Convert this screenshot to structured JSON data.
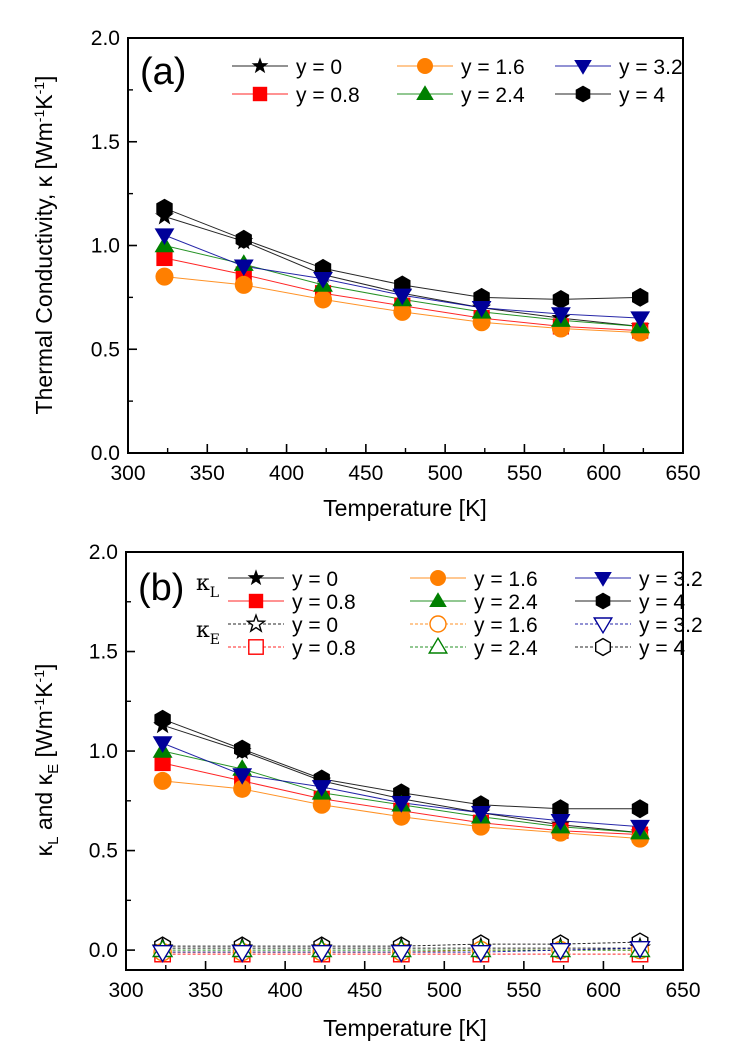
{
  "chart_data": [
    {
      "type": "line",
      "panel_label": "(a)",
      "title": "",
      "xlabel": "Temperature [K]",
      "ylabel": "Thermal Conductivity, κ [Wm⁻¹K⁻¹]",
      "ylabel_parts": {
        "main": "Thermal Conductivity, κ [Wm",
        "sup1": "-1",
        "mid": "K",
        "sup2": "-1",
        "end": "]"
      },
      "xlim": [
        300,
        650
      ],
      "ylim": [
        0.0,
        2.0
      ],
      "xticks": [
        "300",
        "350",
        "400",
        "450",
        "500",
        "550",
        "600",
        "650"
      ],
      "yticks": [
        "0.0",
        "0.5",
        "1.0",
        "1.5",
        "2.0"
      ],
      "grid": false,
      "legend_position": "top",
      "x": [
        323,
        373,
        423,
        473,
        523,
        573,
        623
      ],
      "series": [
        {
          "name": "y = 0",
          "color": "#000000",
          "marker": "star",
          "filled": true,
          "values": [
            1.14,
            1.02,
            0.86,
            0.77,
            0.7,
            0.65,
            0.61
          ]
        },
        {
          "name": "y = 0.8",
          "color": "#ff0000",
          "marker": "square",
          "filled": true,
          "values": [
            0.94,
            0.86,
            0.77,
            0.71,
            0.65,
            0.61,
            0.59
          ]
        },
        {
          "name": "y = 1.6",
          "color": "#ff7f00",
          "marker": "circle",
          "filled": true,
          "values": [
            0.85,
            0.81,
            0.74,
            0.68,
            0.63,
            0.6,
            0.58
          ]
        },
        {
          "name": "y = 2.4",
          "color": "#008000",
          "marker": "triangle-up",
          "filled": true,
          "values": [
            1.0,
            0.91,
            0.81,
            0.74,
            0.68,
            0.64,
            0.61
          ]
        },
        {
          "name": "y = 3.2",
          "color": "#000099",
          "marker": "triangle-down",
          "filled": true,
          "values": [
            1.05,
            0.9,
            0.84,
            0.76,
            0.7,
            0.67,
            0.65
          ]
        },
        {
          "name": "y = 4",
          "color": "#000000",
          "marker": "hexagon",
          "filled": true,
          "values": [
            1.18,
            1.03,
            0.89,
            0.81,
            0.75,
            0.74,
            0.75
          ]
        }
      ]
    },
    {
      "type": "line",
      "panel_label": "(b)",
      "title": "",
      "xlabel": "Temperature [K]",
      "ylabel": "κL and κE [Wm⁻¹K⁻¹]",
      "ylabel_parts": {
        "k1": "κ",
        "sub1": "L",
        "and": " and ",
        "k2": "κ",
        "sub2": "E",
        "unit": " [Wm",
        "sup1": "-1",
        "mid": "K",
        "sup2": "-1",
        "end": "]"
      },
      "xlim": [
        300,
        650
      ],
      "ylim": [
        -0.1,
        2.0
      ],
      "xticks": [
        "300",
        "350",
        "400",
        "450",
        "500",
        "550",
        "600",
        "650"
      ],
      "yticks": [
        "0.0",
        "0.5",
        "1.0",
        "1.5",
        "2.0"
      ],
      "grid": false,
      "legend_position": "top",
      "legend_group_labels": {
        "kL": {
          "k": "κ",
          "sub": "L"
        },
        "kE": {
          "k": "κ",
          "sub": "E"
        }
      },
      "x": [
        323,
        373,
        423,
        473,
        523,
        573,
        623
      ],
      "series": [
        {
          "group": "kL",
          "name": "y = 0",
          "color": "#000000",
          "marker": "star",
          "filled": true,
          "dashed": false,
          "values": [
            1.13,
            1.0,
            0.85,
            0.76,
            0.69,
            0.63,
            0.59
          ]
        },
        {
          "group": "kL",
          "name": "y = 0.8",
          "color": "#ff0000",
          "marker": "square",
          "filled": true,
          "dashed": false,
          "values": [
            0.94,
            0.85,
            0.76,
            0.7,
            0.64,
            0.6,
            0.58
          ]
        },
        {
          "group": "kL",
          "name": "y = 1.6",
          "color": "#ff7f00",
          "marker": "circle",
          "filled": true,
          "dashed": false,
          "values": [
            0.85,
            0.81,
            0.73,
            0.67,
            0.62,
            0.59,
            0.56
          ]
        },
        {
          "group": "kL",
          "name": "y = 2.4",
          "color": "#008000",
          "marker": "triangle-up",
          "filled": true,
          "dashed": false,
          "values": [
            1.0,
            0.91,
            0.79,
            0.73,
            0.67,
            0.62,
            0.59
          ]
        },
        {
          "group": "kL",
          "name": "y = 3.2",
          "color": "#000099",
          "marker": "triangle-down",
          "filled": true,
          "dashed": false,
          "values": [
            1.04,
            0.88,
            0.82,
            0.74,
            0.69,
            0.65,
            0.62
          ]
        },
        {
          "group": "kL",
          "name": "y = 4",
          "color": "#000000",
          "marker": "hexagon",
          "filled": true,
          "dashed": false,
          "values": [
            1.16,
            1.01,
            0.86,
            0.79,
            0.73,
            0.71,
            0.71
          ]
        },
        {
          "group": "kE",
          "name": "y = 0",
          "color": "#000000",
          "marker": "star",
          "filled": false,
          "dashed": true,
          "values": [
            0.01,
            0.01,
            0.01,
            0.01,
            0.01,
            0.01,
            0.01
          ]
        },
        {
          "group": "kE",
          "name": "y = 0.8",
          "color": "#ff0000",
          "marker": "square",
          "filled": false,
          "dashed": true,
          "values": [
            -0.02,
            -0.02,
            -0.02,
            -0.02,
            -0.02,
            -0.02,
            -0.02
          ]
        },
        {
          "group": "kE",
          "name": "y = 1.6",
          "color": "#ff7f00",
          "marker": "circle",
          "filled": false,
          "dashed": true,
          "values": [
            -0.01,
            -0.01,
            -0.01,
            -0.01,
            0.0,
            0.0,
            0.0
          ]
        },
        {
          "group": "kE",
          "name": "y = 2.4",
          "color": "#008000",
          "marker": "triangle-up",
          "filled": false,
          "dashed": true,
          "values": [
            0.0,
            0.0,
            0.0,
            0.0,
            0.0,
            0.0,
            0.0
          ]
        },
        {
          "group": "kE",
          "name": "y = 3.2",
          "color": "#000099",
          "marker": "triangle-down",
          "filled": false,
          "dashed": true,
          "values": [
            -0.01,
            -0.01,
            -0.01,
            -0.01,
            -0.01,
            0.0,
            0.01
          ]
        },
        {
          "group": "kE",
          "name": "y = 4",
          "color": "#000000",
          "marker": "hexagon",
          "filled": false,
          "dashed": true,
          "values": [
            0.02,
            0.02,
            0.02,
            0.02,
            0.03,
            0.03,
            0.04
          ]
        }
      ]
    }
  ]
}
